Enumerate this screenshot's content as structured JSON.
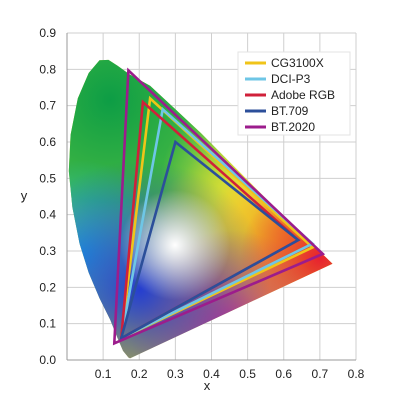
{
  "chart_data": {
    "type": "line",
    "title": "",
    "xlabel": "x",
    "ylabel": "y",
    "xlim": [
      0,
      0.8
    ],
    "ylim": [
      0,
      0.9
    ],
    "x_ticks": [
      "0.1",
      "0.2",
      "0.3",
      "0.4",
      "0.5",
      "0.6",
      "0.7",
      "0.8"
    ],
    "y_ticks": [
      "0.0",
      "0.1",
      "0.2",
      "0.3",
      "0.4",
      "0.5",
      "0.6",
      "0.7",
      "0.8",
      "0.9"
    ],
    "grid": true,
    "legend_position": "top-right",
    "spectral_locus": [
      [
        0.175,
        0.005
      ],
      [
        0.174,
        0.005
      ],
      [
        0.17,
        0.007
      ],
      [
        0.165,
        0.013
      ],
      [
        0.155,
        0.025
      ],
      [
        0.14,
        0.06
      ],
      [
        0.12,
        0.11
      ],
      [
        0.09,
        0.17
      ],
      [
        0.06,
        0.24
      ],
      [
        0.035,
        0.32
      ],
      [
        0.015,
        0.42
      ],
      [
        0.005,
        0.52
      ],
      [
        0.01,
        0.62
      ],
      [
        0.03,
        0.72
      ],
      [
        0.06,
        0.79
      ],
      [
        0.09,
        0.825
      ],
      [
        0.115,
        0.826
      ],
      [
        0.14,
        0.81
      ],
      [
        0.175,
        0.785
      ],
      [
        0.23,
        0.755
      ],
      [
        0.3,
        0.69
      ],
      [
        0.37,
        0.625
      ],
      [
        0.44,
        0.555
      ],
      [
        0.51,
        0.485
      ],
      [
        0.58,
        0.415
      ],
      [
        0.64,
        0.355
      ],
      [
        0.69,
        0.308
      ],
      [
        0.735,
        0.265
      ]
    ],
    "series": [
      {
        "name": "CG3100X",
        "color": "#f0c419",
        "points": [
          [
            0.68,
            0.31
          ],
          [
            0.23,
            0.72
          ],
          [
            0.15,
            0.06
          ]
        ]
      },
      {
        "name": "DCI-P3",
        "color": "#6ec6e6",
        "points": [
          [
            0.68,
            0.32
          ],
          [
            0.265,
            0.69
          ],
          [
            0.15,
            0.06
          ]
        ]
      },
      {
        "name": "Adobe RGB",
        "color": "#d0203a",
        "points": [
          [
            0.64,
            0.33
          ],
          [
            0.21,
            0.71
          ],
          [
            0.15,
            0.06
          ]
        ]
      },
      {
        "name": "BT.709",
        "color": "#2c4f9a",
        "points": [
          [
            0.64,
            0.33
          ],
          [
            0.3,
            0.6
          ],
          [
            0.15,
            0.06
          ]
        ]
      },
      {
        "name": "BT.2020",
        "color": "#9c1c8c",
        "points": [
          [
            0.708,
            0.292
          ],
          [
            0.17,
            0.797
          ],
          [
            0.131,
            0.046
          ]
        ]
      }
    ]
  }
}
